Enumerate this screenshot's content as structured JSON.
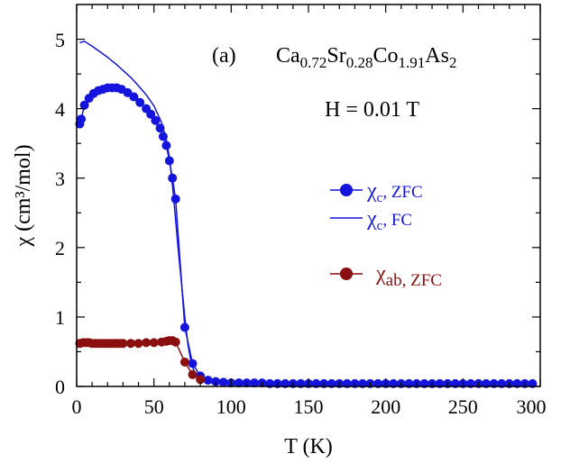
{
  "chart_data": {
    "type": "scatter",
    "xlabel": "T (K)",
    "ylabel": "χ (cm³/mol)",
    "xlim": [
      0,
      300
    ],
    "ylim": [
      0,
      5.5
    ],
    "x_ticks": [
      "0",
      "50",
      "100",
      "150",
      "200",
      "250",
      "300"
    ],
    "y_ticks": [
      "0",
      "1",
      "2",
      "3",
      "4",
      "5"
    ],
    "panel_label": "(a)",
    "compound": {
      "p1": "Ca",
      "s1": "0.72",
      "p2": "Sr",
      "s2": "0.28",
      "p3": "Co",
      "s3": "1.91",
      "p4": "As",
      "s4": "2"
    },
    "field": "H = 0.01 T",
    "legend": {
      "zfc_c": {
        "sym": "χ",
        "sub": "c",
        "rest": ", ZFC"
      },
      "fc_c": {
        "sym": "χ",
        "sub": "c",
        "rest": ", FC"
      },
      "zfc_ab": {
        "sym": "χ",
        "sub": "ab, ZFC",
        "rest": ""
      }
    },
    "colors": {
      "c": "#1414dc",
      "ab": "#8b0f0f"
    },
    "series": [
      {
        "name": "chi_c ZFC",
        "style": "line+markers",
        "color": "#1414dc",
        "x": [
          2,
          3,
          5,
          8,
          11,
          14,
          17,
          20,
          23,
          26,
          29,
          33,
          37,
          41,
          45,
          48,
          51,
          54,
          56,
          58,
          60,
          62,
          64,
          70,
          75,
          80,
          85,
          90,
          95,
          100,
          105,
          110,
          115,
          120,
          125,
          130,
          135,
          140,
          145,
          150,
          155,
          160,
          165,
          170,
          175,
          180,
          185,
          190,
          195,
          200,
          205,
          210,
          215,
          220,
          225,
          230,
          235,
          240,
          245,
          250,
          255,
          260,
          265,
          270,
          275,
          280,
          285,
          290,
          295
        ],
        "y": [
          3.78,
          3.85,
          4.05,
          4.15,
          4.22,
          4.26,
          4.28,
          4.3,
          4.3,
          4.3,
          4.28,
          4.23,
          4.17,
          4.09,
          4.0,
          3.92,
          3.83,
          3.72,
          3.6,
          3.47,
          3.25,
          3.0,
          2.7,
          0.85,
          0.33,
          0.15,
          0.09,
          0.07,
          0.06,
          0.05,
          0.05,
          0.05,
          0.05,
          0.05,
          0.04,
          0.04,
          0.04,
          0.04,
          0.04,
          0.04,
          0.04,
          0.04,
          0.04,
          0.04,
          0.04,
          0.04,
          0.04,
          0.04,
          0.04,
          0.04,
          0.04,
          0.04,
          0.04,
          0.04,
          0.04,
          0.04,
          0.04,
          0.04,
          0.04,
          0.04,
          0.04,
          0.04,
          0.04,
          0.04,
          0.04,
          0.04,
          0.04,
          0.04,
          0.04
        ]
      },
      {
        "name": "chi_c FC",
        "style": "line",
        "color": "#1414dc",
        "x": [
          2,
          5,
          10,
          15,
          20,
          25,
          30,
          35,
          40,
          45,
          50,
          55,
          58,
          60,
          62,
          64,
          66,
          68,
          70,
          72,
          74,
          76,
          80,
          85,
          90,
          100,
          120,
          150,
          200,
          250,
          295
        ],
        "y": [
          4.95,
          4.97,
          4.9,
          4.82,
          4.74,
          4.65,
          4.55,
          4.45,
          4.33,
          4.2,
          4.04,
          3.8,
          3.55,
          3.3,
          2.9,
          2.4,
          1.9,
          1.45,
          1.0,
          0.6,
          0.35,
          0.22,
          0.12,
          0.08,
          0.06,
          0.05,
          0.05,
          0.04,
          0.04,
          0.04,
          0.04
        ]
      },
      {
        "name": "chi_ab ZFC",
        "style": "line+markers",
        "color": "#8b0f0f",
        "x": [
          2,
          4,
          6,
          8,
          10,
          12,
          14,
          16,
          18,
          20,
          22,
          24,
          26,
          28,
          30,
          35,
          40,
          45,
          50,
          55,
          58,
          60,
          62,
          64,
          70,
          75,
          80
        ],
        "y": [
          0.62,
          0.63,
          0.63,
          0.63,
          0.62,
          0.62,
          0.62,
          0.62,
          0.62,
          0.62,
          0.62,
          0.62,
          0.62,
          0.62,
          0.62,
          0.62,
          0.62,
          0.63,
          0.63,
          0.64,
          0.65,
          0.66,
          0.66,
          0.64,
          0.35,
          0.17,
          0.1
        ]
      }
    ]
  }
}
